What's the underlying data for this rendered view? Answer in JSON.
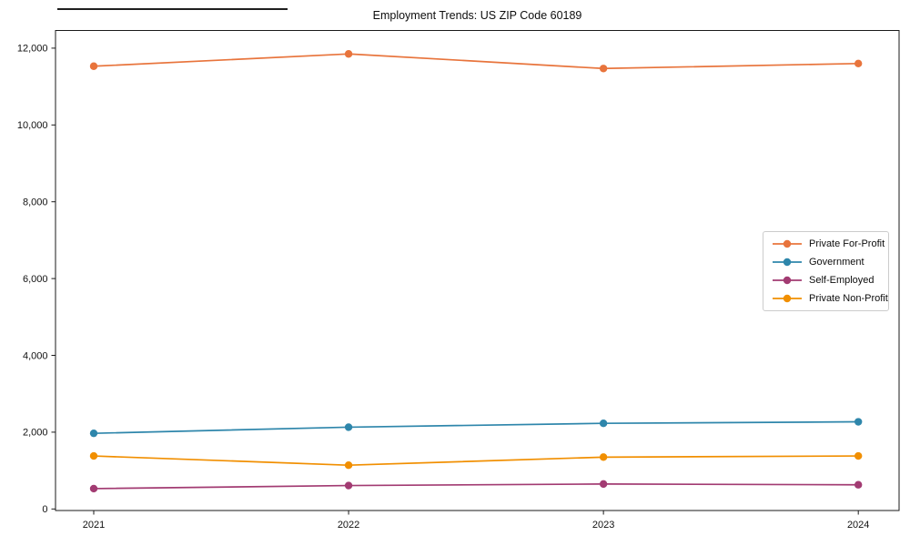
{
  "figure": {
    "background": "#ffffff",
    "frame_color": "#1a1a1a"
  },
  "chart_data": {
    "type": "line",
    "title": "Employment Trends: US ZIP Code 60189",
    "x": [
      2021,
      2022,
      2023,
      2024
    ],
    "x_tick_labels": [
      "2021",
      "2022",
      "2023",
      "2024"
    ],
    "series": [
      {
        "name": "Private For-Profit",
        "color": "#E8743C",
        "values": [
          11530,
          11850,
          11470,
          11600
        ]
      },
      {
        "name": "Government",
        "color": "#2E86AB",
        "values": [
          1970,
          2130,
          2230,
          2270
        ]
      },
      {
        "name": "Self-Employed",
        "color": "#A23B72",
        "values": [
          530,
          610,
          650,
          630
        ]
      },
      {
        "name": "Private Non-Profit",
        "color": "#F18F01",
        "values": [
          1380,
          1140,
          1350,
          1380
        ]
      }
    ],
    "yticks": [
      0,
      2000,
      4000,
      6000,
      8000,
      10000,
      12000
    ],
    "ytick_labels": [
      "0",
      "2,000",
      "4,000",
      "6,000",
      "8,000",
      "10,000",
      "12,000"
    ],
    "xlabel": "",
    "ylabel": "",
    "xlim": [
      2020.85,
      2024.16
    ],
    "ylim": [
      -40,
      12460
    ],
    "grid": false,
    "legend": {
      "position": "center-right",
      "border_color": "#cccccc"
    },
    "marker": "circle",
    "marker_radius": 4.2,
    "line_width": 1.7
  }
}
